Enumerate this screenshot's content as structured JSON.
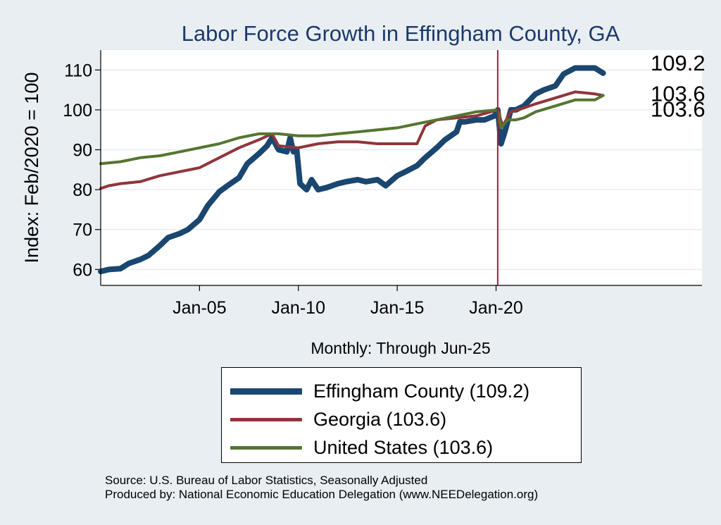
{
  "chart_data": {
    "type": "line",
    "title": "Labor Force Growth in Effingham  County, GA",
    "xlabel": "Monthly: Through Jun-25",
    "ylabel": "Index: Feb/2020 = 100",
    "xlim": [
      "2000-01",
      "2030-06"
    ],
    "ylim": [
      56,
      115
    ],
    "yticks": [
      60,
      70,
      80,
      90,
      100,
      110
    ],
    "xticks": [
      {
        "date": "2005-01",
        "label": "Jan-05"
      },
      {
        "date": "2010-01",
        "label": "Jan-10"
      },
      {
        "date": "2015-01",
        "label": "Jan-15"
      },
      {
        "date": "2020-01",
        "label": "Jan-20"
      }
    ],
    "vline": {
      "date": "2020-02",
      "color": "#b3173c"
    },
    "grid": "horizontal",
    "legend_position": "bottom",
    "series": [
      {
        "name": "Effingham  County (109.2)",
        "color": "#1a476f",
        "end_label": "109.2",
        "points": [
          [
            "2000-01",
            59.5
          ],
          [
            "2000-06",
            60.0
          ],
          [
            "2001-01",
            60.2
          ],
          [
            "2001-06",
            61.5
          ],
          [
            "2002-01",
            62.5
          ],
          [
            "2002-06",
            63.5
          ],
          [
            "2003-01",
            66.0
          ],
          [
            "2003-06",
            68.0
          ],
          [
            "2004-01",
            69.0
          ],
          [
            "2004-06",
            70.0
          ],
          [
            "2005-01",
            72.5
          ],
          [
            "2005-06",
            76.0
          ],
          [
            "2006-01",
            79.5
          ],
          [
            "2006-06",
            81.0
          ],
          [
            "2007-01",
            83.0
          ],
          [
            "2007-06",
            86.5
          ],
          [
            "2008-01",
            89.0
          ],
          [
            "2008-06",
            91.0
          ],
          [
            "2008-09",
            93.0
          ],
          [
            "2009-01",
            90.0
          ],
          [
            "2009-06",
            89.5
          ],
          [
            "2009-08",
            93.0
          ],
          [
            "2009-10",
            89.5
          ],
          [
            "2009-12",
            90.0
          ],
          [
            "2010-02",
            81.5
          ],
          [
            "2010-06",
            80.0
          ],
          [
            "2010-09",
            82.5
          ],
          [
            "2011-01",
            80.0
          ],
          [
            "2011-06",
            80.5
          ],
          [
            "2012-01",
            81.5
          ],
          [
            "2012-06",
            82.0
          ],
          [
            "2013-01",
            82.5
          ],
          [
            "2013-06",
            82.0
          ],
          [
            "2014-01",
            82.5
          ],
          [
            "2014-06",
            81.0
          ],
          [
            "2015-01",
            83.5
          ],
          [
            "2015-06",
            84.5
          ],
          [
            "2016-01",
            86.0
          ],
          [
            "2016-06",
            88.0
          ],
          [
            "2017-01",
            90.5
          ],
          [
            "2017-06",
            92.5
          ],
          [
            "2018-01",
            94.5
          ],
          [
            "2018-03",
            97.0
          ],
          [
            "2018-06",
            97.0
          ],
          [
            "2019-01",
            97.5
          ],
          [
            "2019-06",
            97.5
          ],
          [
            "2019-12",
            98.5
          ],
          [
            "2020-02",
            100.0
          ],
          [
            "2020-04",
            91.5
          ],
          [
            "2020-06",
            94.0
          ],
          [
            "2020-10",
            100.0
          ],
          [
            "2021-01",
            100.0
          ],
          [
            "2021-06",
            101.0
          ],
          [
            "2022-01",
            104.0
          ],
          [
            "2022-06",
            105.0
          ],
          [
            "2023-01",
            106.0
          ],
          [
            "2023-06",
            109.0
          ],
          [
            "2024-01",
            110.5
          ],
          [
            "2024-06",
            110.5
          ],
          [
            "2025-01",
            110.5
          ],
          [
            "2025-06",
            109.2
          ]
        ]
      },
      {
        "name": "Georgia (103.6)",
        "color": "#90353b",
        "end_label": "103.6",
        "points": [
          [
            "2000-01",
            80.3
          ],
          [
            "2000-06",
            81.0
          ],
          [
            "2001-01",
            81.5
          ],
          [
            "2002-01",
            82.0
          ],
          [
            "2003-01",
            83.5
          ],
          [
            "2004-01",
            84.5
          ],
          [
            "2005-01",
            85.5
          ],
          [
            "2006-01",
            88.0
          ],
          [
            "2007-01",
            90.5
          ],
          [
            "2008-01",
            92.5
          ],
          [
            "2008-09",
            94.0
          ],
          [
            "2009-01",
            91.0
          ],
          [
            "2010-01",
            90.5
          ],
          [
            "2011-01",
            91.5
          ],
          [
            "2012-01",
            92.0
          ],
          [
            "2013-01",
            92.0
          ],
          [
            "2014-01",
            91.5
          ],
          [
            "2015-01",
            91.5
          ],
          [
            "2016-01",
            91.5
          ],
          [
            "2016-06",
            96.0
          ],
          [
            "2017-01",
            97.5
          ],
          [
            "2018-01",
            98.0
          ],
          [
            "2019-01",
            98.5
          ],
          [
            "2020-02",
            100.0
          ],
          [
            "2020-05",
            96.0
          ],
          [
            "2020-10",
            99.5
          ],
          [
            "2021-06",
            100.5
          ],
          [
            "2022-01",
            101.5
          ],
          [
            "2023-01",
            103.0
          ],
          [
            "2024-01",
            104.5
          ],
          [
            "2025-01",
            104.0
          ],
          [
            "2025-06",
            103.6
          ]
        ]
      },
      {
        "name": "United States (103.6)",
        "color": "#55752f",
        "end_label": "103.6",
        "points": [
          [
            "2000-01",
            86.5
          ],
          [
            "2001-01",
            87.0
          ],
          [
            "2002-01",
            88.0
          ],
          [
            "2003-01",
            88.5
          ],
          [
            "2004-01",
            89.5
          ],
          [
            "2005-01",
            90.5
          ],
          [
            "2006-01",
            91.5
          ],
          [
            "2007-01",
            93.0
          ],
          [
            "2008-01",
            94.0
          ],
          [
            "2009-01",
            94.0
          ],
          [
            "2010-01",
            93.5
          ],
          [
            "2011-01",
            93.5
          ],
          [
            "2012-01",
            94.0
          ],
          [
            "2013-01",
            94.5
          ],
          [
            "2014-01",
            95.0
          ],
          [
            "2015-01",
            95.5
          ],
          [
            "2016-01",
            96.5
          ],
          [
            "2017-01",
            97.5
          ],
          [
            "2018-01",
            98.5
          ],
          [
            "2019-01",
            99.5
          ],
          [
            "2020-02",
            100.0
          ],
          [
            "2020-04",
            95.5
          ],
          [
            "2020-08",
            97.5
          ],
          [
            "2021-01",
            97.5
          ],
          [
            "2021-06",
            98.0
          ],
          [
            "2022-01",
            99.5
          ],
          [
            "2023-01",
            101.0
          ],
          [
            "2024-01",
            102.5
          ],
          [
            "2025-01",
            102.5
          ],
          [
            "2025-06",
            103.6
          ]
        ]
      }
    ]
  },
  "source": {
    "line1": "Source: U.S. Bureau of Labor Statistics, Seasonally Adjusted",
    "line2": "Produced by: National Economic Education Delegation (www.NEEDelegation.org)"
  }
}
